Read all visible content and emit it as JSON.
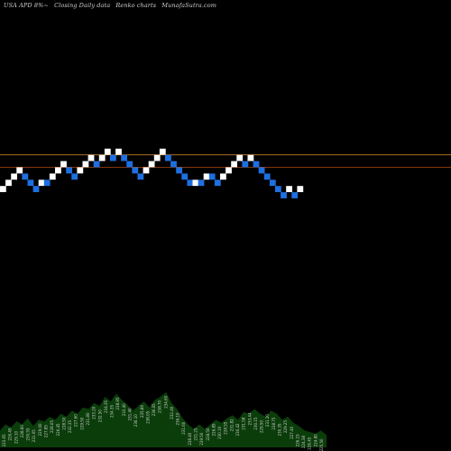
{
  "header": {
    "symbol": "USA APD 8%~",
    "closing": "Closing Daily data",
    "chart_name": "Renko  charts",
    "site": "MunafaSutra.com"
  },
  "colors": {
    "background": "#000000",
    "up_brick": "#ffffff",
    "down_brick": "#1e6fe0",
    "line_upper": "#c8802a",
    "line_lower": "#b04810",
    "volume": "#0b3d0b",
    "date_text": "#cfcfcf"
  },
  "chart_data": {
    "type": "renko",
    "title": "",
    "xlabel": "",
    "ylabel": "",
    "ylim": [
      -6,
      6
    ],
    "reference_lines": [
      {
        "name": "upper",
        "value": 1.5
      },
      {
        "name": "lower",
        "value": -0.5
      }
    ],
    "bricks": [
      {
        "dir": "up",
        "level": -4
      },
      {
        "dir": "up",
        "level": -3
      },
      {
        "dir": "up",
        "level": -2
      },
      {
        "dir": "up",
        "level": -1
      },
      {
        "dir": "down",
        "level": -2
      },
      {
        "dir": "down",
        "level": -3
      },
      {
        "dir": "down",
        "level": -4
      },
      {
        "dir": "up",
        "level": -3
      },
      {
        "dir": "down",
        "level": -3
      },
      {
        "dir": "up",
        "level": -2
      },
      {
        "dir": "up",
        "level": -1
      },
      {
        "dir": "up",
        "level": 0
      },
      {
        "dir": "down",
        "level": -1
      },
      {
        "dir": "down",
        "level": -2
      },
      {
        "dir": "up",
        "level": -1
      },
      {
        "dir": "up",
        "level": 0
      },
      {
        "dir": "up",
        "level": 1
      },
      {
        "dir": "down",
        "level": 0
      },
      {
        "dir": "up",
        "level": 1
      },
      {
        "dir": "up",
        "level": 2
      },
      {
        "dir": "down",
        "level": 1
      },
      {
        "dir": "up",
        "level": 2
      },
      {
        "dir": "down",
        "level": 1
      },
      {
        "dir": "down",
        "level": 0
      },
      {
        "dir": "down",
        "level": -1
      },
      {
        "dir": "down",
        "level": -2
      },
      {
        "dir": "up",
        "level": -1
      },
      {
        "dir": "up",
        "level": 0
      },
      {
        "dir": "up",
        "level": 1
      },
      {
        "dir": "up",
        "level": 2
      },
      {
        "dir": "down",
        "level": 1
      },
      {
        "dir": "down",
        "level": 0
      },
      {
        "dir": "down",
        "level": -1
      },
      {
        "dir": "down",
        "level": -2
      },
      {
        "dir": "down",
        "level": -3
      },
      {
        "dir": "up",
        "level": -3
      },
      {
        "dir": "down",
        "level": -3
      },
      {
        "dir": "up",
        "level": -2
      },
      {
        "dir": "down",
        "level": -2
      },
      {
        "dir": "down",
        "level": -3
      },
      {
        "dir": "up",
        "level": -2
      },
      {
        "dir": "up",
        "level": -1
      },
      {
        "dir": "up",
        "level": 0
      },
      {
        "dir": "up",
        "level": 1
      },
      {
        "dir": "down",
        "level": 0
      },
      {
        "dir": "up",
        "level": 1
      },
      {
        "dir": "down",
        "level": 0
      },
      {
        "dir": "down",
        "level": -1
      },
      {
        "dir": "down",
        "level": -2
      },
      {
        "dir": "down",
        "level": -3
      },
      {
        "dir": "down",
        "level": -4
      },
      {
        "dir": "down",
        "level": -5
      },
      {
        "dir": "up",
        "level": -4
      },
      {
        "dir": "down",
        "level": -5
      },
      {
        "dir": "up",
        "level": -4
      }
    ],
    "volume": [
      22,
      30,
      26,
      34,
      30,
      38,
      28,
      36,
      34,
      40,
      36,
      44,
      40,
      48,
      44,
      52,
      50,
      58,
      54,
      66,
      60,
      70,
      62,
      56,
      48,
      54,
      60,
      52,
      62,
      66,
      72,
      58,
      50,
      38,
      30,
      24,
      30,
      24,
      30,
      36,
      32,
      38,
      42,
      36,
      46,
      44,
      50,
      44,
      40,
      48,
      44,
      36,
      40,
      32,
      28,
      22,
      20,
      18,
      22,
      16
    ],
    "date_labels": [
      "223.05",
      "226.45",
      "229.10",
      "228.60",
      "230.55",
      "231.05",
      "229.00",
      "227.85",
      "228.05",
      "226.45",
      "228.50",
      "232.35",
      "227.60",
      "229.50",
      "231.80",
      "233.20",
      "232.50",
      "234.35",
      "234.35",
      "238.95",
      "233.40",
      "231.40",
      "236.10",
      "235.80",
      "238.05",
      "236.05",
      "238.70",
      "234.60",
      "232.40",
      "236.10",
      "231.60",
      "228.40",
      "231.25",
      "229.50",
      "228.50",
      "226.85",
      "230.10",
      "228.55",
      "231.82",
      "230.42",
      "231.58",
      "233.44",
      "230.15",
      "229.50",
      "231.20",
      "228.75",
      "230.35",
      "229.25",
      "227.40",
      "226.15",
      "224.38",
      "226.45",
      "224.80",
      "225.50"
    ]
  }
}
